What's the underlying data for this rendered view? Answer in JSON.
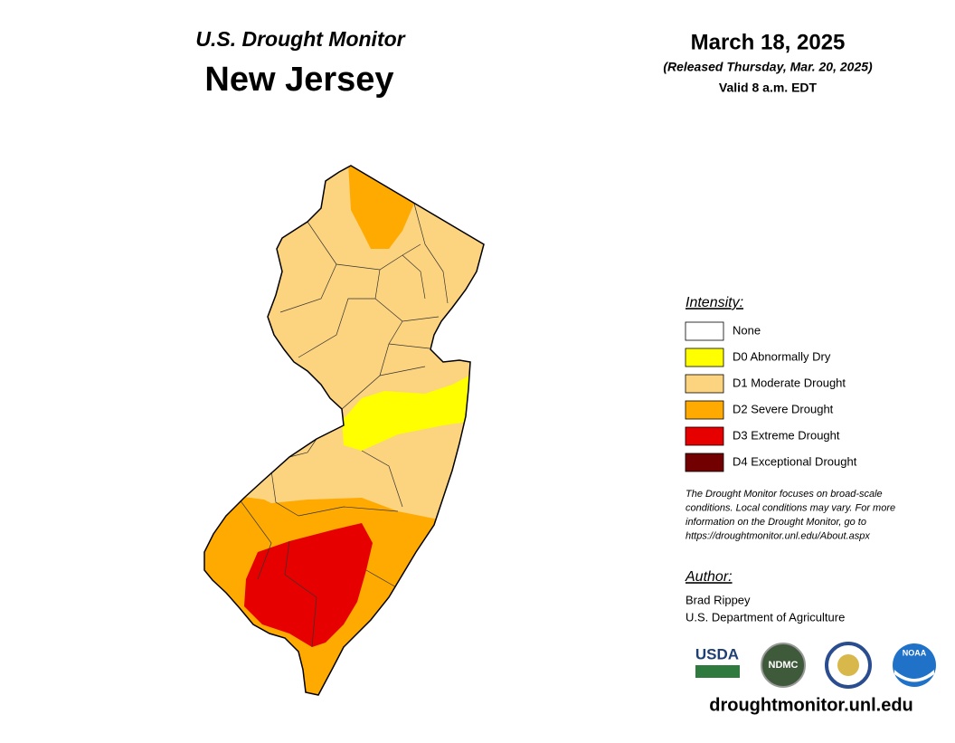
{
  "header": {
    "subtitle": "U.S. Drought Monitor",
    "title": "New Jersey",
    "date": "March 18, 2025",
    "released": "(Released Thursday, Mar. 20, 2025)",
    "valid": "Valid 8 a.m. EDT"
  },
  "legend": {
    "title": "Intensity:",
    "items": [
      {
        "label": "None",
        "color": "#ffffff"
      },
      {
        "label": "D0 Abnormally Dry",
        "color": "#ffff00"
      },
      {
        "label": "D1 Moderate Drought",
        "color": "#fcd37f"
      },
      {
        "label": "D2 Severe Drought",
        "color": "#ffaa00"
      },
      {
        "label": "D3 Extreme Drought",
        "color": "#e60000"
      },
      {
        "label": "D4 Exceptional Drought",
        "color": "#730000"
      }
    ]
  },
  "note": [
    "The Drought Monitor focuses on broad-scale",
    "conditions. Local conditions may vary. For more",
    "information on the Drought Monitor, go to",
    "https://droughtmonitor.unl.edu/About.aspx"
  ],
  "author": {
    "heading": "Author:",
    "name": "Brad Rippey",
    "org": "U.S. Department of Agriculture"
  },
  "logos": [
    "USDA",
    "NDMC",
    "NOAA"
  ],
  "footer": "droughtmonitor.unl.edu"
}
